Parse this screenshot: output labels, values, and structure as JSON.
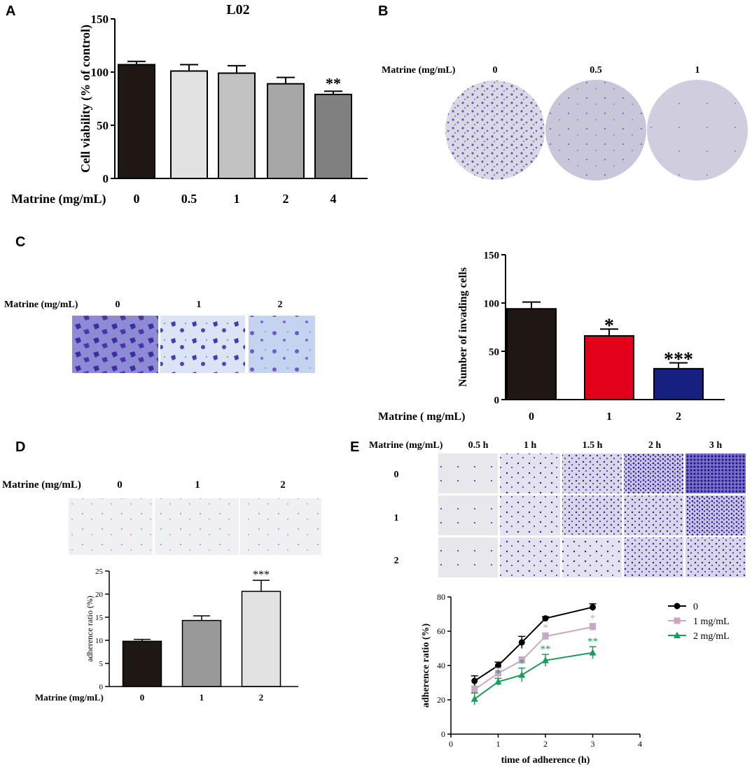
{
  "panels": {
    "A": {
      "label": "A"
    },
    "B": {
      "label": "B",
      "matrine_label": "Matrine (mg/mL)",
      "doses": [
        "0",
        "0.5",
        "1"
      ]
    },
    "C": {
      "label": "C",
      "matrine_label": "Matrine (mg/mL)",
      "doses": [
        "0",
        "1",
        "2"
      ]
    },
    "D": {
      "label": "D",
      "matrine_label": "Matrine (mg/mL)",
      "doses": [
        "0",
        "1",
        "2"
      ]
    },
    "E": {
      "label": "E",
      "matrine_label": "Matrine (mg/mL)",
      "times": [
        "0.5 h",
        "1 h",
        "1.5 h",
        "2 h",
        "3 h"
      ],
      "rows": [
        "0",
        "1",
        "2"
      ]
    }
  },
  "colors": {
    "violet": "#4b3fb0",
    "black": "#1e1714",
    "red": "#e3001b",
    "navy": "#16217f",
    "green": "#1a9c5a",
    "pink": "#c9a8c6"
  },
  "chart_data": [
    {
      "id": "A",
      "type": "bar",
      "title": "L02",
      "xlabel": "Matrine (mg/mL)",
      "ylabel": "Cell viability (% of control)",
      "ylim": [
        0,
        150
      ],
      "yticks": [
        0,
        50,
        100,
        150
      ],
      "categories": [
        "0",
        "0.5",
        "1",
        "2",
        "4"
      ],
      "values": [
        107,
        101,
        99,
        89,
        79
      ],
      "errors": [
        3,
        6,
        7,
        6,
        3
      ],
      "colors": [
        "#1e1714",
        "#e2e2e2",
        "#c2c2c2",
        "#a6a6a6",
        "#808080"
      ],
      "significance": [
        "",
        "",
        "",
        "",
        "**"
      ]
    },
    {
      "id": "C",
      "type": "bar",
      "xlabel": "Matrine ( mg/mL)",
      "ylabel": "Number of invading cells",
      "ylim": [
        0,
        150
      ],
      "yticks": [
        0,
        50,
        100,
        150
      ],
      "categories": [
        "0",
        "1",
        "2"
      ],
      "values": [
        94,
        66,
        32
      ],
      "errors": [
        7,
        7,
        6
      ],
      "colors": [
        "#1e1714",
        "#e3001b",
        "#16217f"
      ],
      "significance": [
        "",
        "*",
        "***"
      ]
    },
    {
      "id": "D",
      "type": "bar",
      "xlabel": "Matrine (mg/mL)",
      "ylabel": "adherence ratio (%)",
      "ylim": [
        0,
        25
      ],
      "yticks": [
        0,
        5,
        10,
        15,
        20,
        25
      ],
      "categories": [
        "0",
        "1",
        "2"
      ],
      "values": [
        9.8,
        14.3,
        20.6
      ],
      "errors": [
        0.4,
        1.0,
        2.4
      ],
      "colors": [
        "#1e1714",
        "#999999",
        "#e2e2e2"
      ],
      "significance": [
        "",
        "",
        "***"
      ]
    },
    {
      "id": "E",
      "type": "line",
      "xlabel": "time of adherence (h)",
      "ylabel": "adherence ratio (%)",
      "xlim": [
        0,
        4
      ],
      "ylim": [
        0,
        80
      ],
      "xticks": [
        0,
        1,
        2,
        3,
        4
      ],
      "yticks": [
        0,
        20,
        40,
        60,
        80
      ],
      "x": [
        0.5,
        1,
        1.5,
        2,
        3
      ],
      "legend": "right",
      "series": [
        {
          "name": "0",
          "values": [
            31,
            40,
            53.5,
            67.5,
            74
          ],
          "errors": [
            3,
            2,
            3.5,
            1,
            2
          ],
          "color": "#000000",
          "marker": "circle",
          "significance": [
            "",
            "",
            "",
            "",
            ""
          ]
        },
        {
          "name": "1 mg/mL",
          "values": [
            26,
            35.5,
            43,
            57,
            62.5
          ],
          "errors": [
            2,
            3,
            2,
            2,
            2
          ],
          "color": "#c9a8c6",
          "marker": "square",
          "significance": [
            "",
            "",
            "",
            "*",
            "*"
          ]
        },
        {
          "name": "2 mg/mL",
          "values": [
            20.5,
            30.5,
            34.5,
            43,
            47.5
          ],
          "errors": [
            3.5,
            2,
            4,
            3.5,
            3.5
          ],
          "color": "#1a9c5a",
          "marker": "triangle",
          "significance": [
            "",
            "*",
            "*",
            "**",
            "**"
          ]
        }
      ]
    }
  ]
}
